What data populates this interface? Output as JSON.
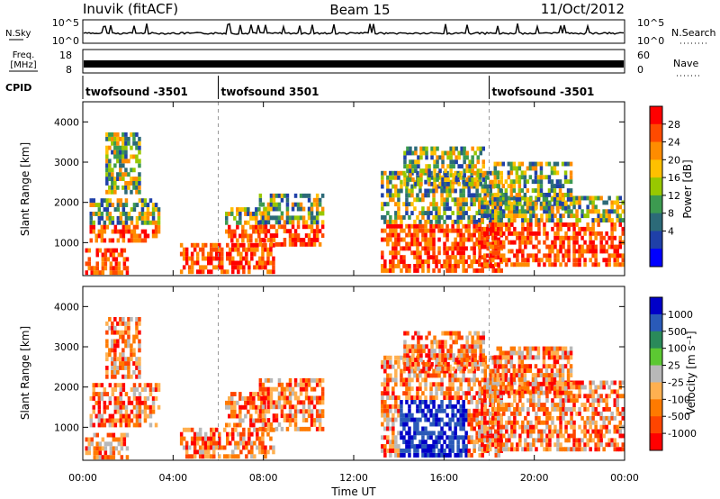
{
  "header": {
    "station": "Inuvik (fitACF)",
    "beam": "Beam 15",
    "date": "11/Oct/2012"
  },
  "summary": {
    "nsky_label": "N.Sky",
    "nsearch_label": "N.Search",
    "noise_ticks": [
      "10^5",
      "10^0"
    ],
    "freq_label": "Freq.",
    "freq_unit": "[MHz]",
    "freq_ticks": [
      "18",
      "8"
    ],
    "nave_label": "Nave",
    "nave_ticks": [
      "60",
      "0"
    ],
    "cpid_label": "CPID",
    "cpid_segments": [
      {
        "label": "twofsound -3501",
        "start_hour": 0
      },
      {
        "label": "twofsound 3501",
        "start_hour": 6
      },
      {
        "label": "twofsound -3501",
        "start_hour": 18
      }
    ]
  },
  "chart_data": [
    {
      "type": "heatmap",
      "panel": "power",
      "xlabel": "Time UT",
      "ylabel": "Slant Range [km]",
      "x_range_hours": [
        0,
        24
      ],
      "y_range_km": [
        180,
        4500
      ],
      "y_ticks": [
        1000,
        2000,
        3000,
        4000
      ],
      "colorbar": {
        "label": "Power [dB]",
        "tick_labels": [
          "28",
          "24",
          "20",
          "16",
          "12",
          "8",
          "4"
        ],
        "colors": [
          "#ff0000",
          "#ff4a00",
          "#ff8c00",
          "#ffc000",
          "#98c800",
          "#3c9a50",
          "#2c6a78",
          "#1f40a8",
          "#0000ff"
        ]
      }
    },
    {
      "type": "heatmap",
      "panel": "velocity",
      "xlabel": "Time UT",
      "ylabel": "Slant Range [km]",
      "x_range_hours": [
        0,
        24
      ],
      "y_range_km": [
        180,
        4500
      ],
      "y_ticks": [
        1000,
        2000,
        3000,
        4000
      ],
      "colorbar": {
        "label": "Velocity [m s⁻¹]",
        "tick_labels": [
          "1000",
          "500",
          "100",
          "25",
          "-25",
          "-100",
          "-500",
          "-1000"
        ],
        "colors": [
          "#0000c8",
          "#2a5ab8",
          "#2a8a5a",
          "#5cc832",
          "#b8b8b8",
          "#ffb050",
          "#ff7a00",
          "#ff4500",
          "#ff0000"
        ]
      }
    }
  ],
  "time_axis": {
    "tick_labels": [
      "00:00",
      "04:00",
      "08:00",
      "12:00",
      "16:00",
      "20:00",
      "00:00"
    ],
    "label": "Time UT"
  }
}
